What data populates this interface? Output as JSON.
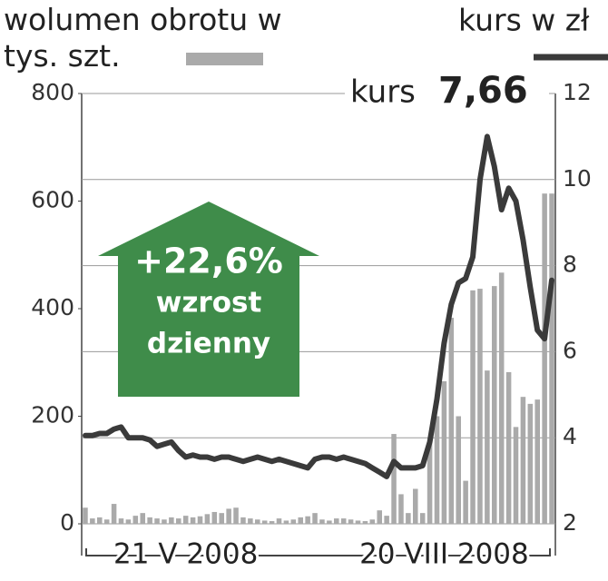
{
  "chart_data": {
    "type": "bar_line",
    "categories": [
      null,
      null,
      null,
      null,
      null,
      null,
      null,
      null,
      null,
      null,
      null,
      null,
      null,
      null,
      "21 V 2008",
      null,
      null,
      null,
      null,
      null,
      null,
      null,
      null,
      null,
      null,
      null,
      null,
      null,
      null,
      null,
      null,
      null,
      null,
      null,
      null,
      null,
      null,
      null,
      null,
      null,
      null,
      null,
      null,
      null,
      null,
      null,
      null,
      null,
      null,
      null,
      "20 VIII 2008",
      null,
      null,
      null,
      null,
      null,
      null,
      null,
      null,
      null,
      null,
      null,
      null,
      null,
      null,
      null
    ],
    "series": [
      {
        "name": "wolumen obrotu w tys. szt.",
        "color": "#aaaaaa",
        "axis": "y",
        "values": [
          30,
          10,
          12,
          8,
          37,
          10,
          8,
          15,
          20,
          12,
          10,
          8,
          12,
          10,
          15,
          12,
          14,
          18,
          22,
          20,
          28,
          30,
          12,
          10,
          8,
          6,
          5,
          10,
          6,
          8,
          12,
          14,
          20,
          8,
          6,
          10,
          10,
          8,
          6,
          5,
          8,
          25,
          15,
          167,
          55,
          20,
          65,
          20,
          150,
          200,
          265,
          383,
          200,
          80,
          434,
          437,
          285,
          442,
          467,
          282,
          180,
          236,
          223,
          231,
          614,
          614
        ]
      },
      {
        "name": "kurs w zł",
        "color": "#3a3a3a",
        "axis": "y2",
        "values": [
          4.05,
          4.05,
          4.1,
          4.1,
          4.2,
          4.25,
          4.0,
          4.0,
          4.0,
          3.95,
          3.8,
          3.85,
          3.9,
          3.7,
          3.55,
          3.6,
          3.55,
          3.55,
          3.5,
          3.55,
          3.55,
          3.5,
          3.45,
          3.5,
          3.55,
          3.5,
          3.45,
          3.5,
          3.45,
          3.4,
          3.35,
          3.3,
          3.5,
          3.55,
          3.55,
          3.5,
          3.55,
          3.5,
          3.45,
          3.4,
          3.3,
          3.2,
          3.1,
          3.45,
          3.3,
          3.3,
          3.3,
          3.35,
          3.9,
          4.9,
          6.2,
          7.1,
          7.6,
          7.7,
          8.2,
          10.0,
          11.0,
          10.3,
          9.3,
          9.8,
          9.5,
          8.6,
          7.5,
          6.5,
          6.3,
          7.66
        ]
      }
    ],
    "ylim": [
      0,
      800
    ],
    "yticks": [
      0,
      200,
      400,
      600,
      800
    ],
    "y2lim": [
      2,
      12
    ],
    "y2ticks": [
      2,
      4,
      6,
      8,
      10,
      12
    ],
    "grid": true,
    "last_price": {
      "label": "kurs",
      "value": 7.66,
      "value_label": "7,66"
    },
    "change": {
      "value": 22.6,
      "label": "+22,6%",
      "line1": "wzrost",
      "line2": "dzienny"
    }
  }
}
